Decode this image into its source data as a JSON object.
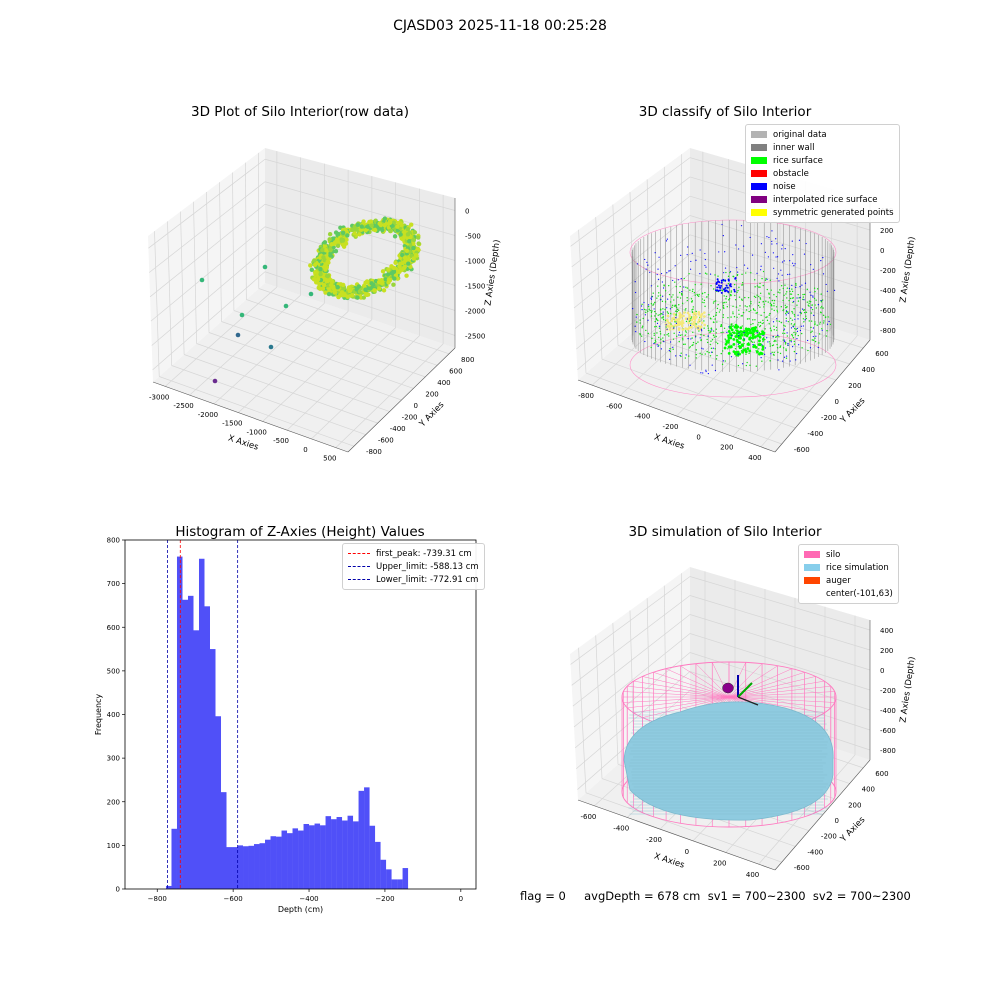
{
  "header": {
    "title": "CJASD03 2025-11-18 00:25:28"
  },
  "panels": {
    "raw": {
      "title": "3D Plot of Silo Interior(row data)",
      "xlabel": "X Axies",
      "ylabel": "Y Axies",
      "zlabel": "Z Axies (Depth)",
      "xticks": [
        "-3000",
        "-2500",
        "-2000",
        "-1500",
        "-1000",
        "-500",
        "0",
        "500"
      ],
      "yticks": [
        "-800",
        "-600",
        "-400",
        "-200",
        "0",
        "200",
        "400",
        "600",
        "800"
      ],
      "zticks": [
        "0",
        "-500",
        "-1000",
        "-1500",
        "-2000",
        "-2500"
      ]
    },
    "classify": {
      "title": "3D classify of Silo Interior",
      "xlabel": "X Axies",
      "ylabel": "Y Axies",
      "zlabel": "Z Axies (Depth)",
      "xticks": [
        "-800",
        "-600",
        "-400",
        "-200",
        "0",
        "200",
        "400"
      ],
      "yticks": [
        "-600",
        "-400",
        "-200",
        "0",
        "200",
        "400",
        "600"
      ],
      "zticks": [
        "400",
        "200",
        "0",
        "-200",
        "-400",
        "-600",
        "-800"
      ],
      "legend": [
        {
          "label": "original data",
          "color": "#b3b3b3"
        },
        {
          "label": "inner wall",
          "color": "#808080"
        },
        {
          "label": "rice surface",
          "color": "#00ff00"
        },
        {
          "label": "obstacle",
          "color": "#ff0000"
        },
        {
          "label": "noise",
          "color": "#0000ff"
        },
        {
          "label": "interpolated rice surface",
          "color": "#800080"
        },
        {
          "label": "symmetric generated points",
          "color": "#ffff00"
        }
      ]
    },
    "simulation": {
      "title": "3D simulation of Silo Interior",
      "xlabel": "X Axies",
      "ylabel": "Y Axies",
      "zlabel": "Z Axies (Depth)",
      "xticks": [
        "-600",
        "-400",
        "-200",
        "0",
        "200",
        "400"
      ],
      "yticks": [
        "-600",
        "-400",
        "-200",
        "0",
        "200",
        "400",
        "600"
      ],
      "zticks": [
        "400",
        "200",
        "0",
        "-200",
        "-400",
        "-600",
        "-800"
      ],
      "legend": [
        {
          "label": "silo",
          "color": "#ff69b4"
        },
        {
          "label": "rice simulation",
          "color": "#87ceeb"
        },
        {
          "label": "auger",
          "color": "#ff4500"
        },
        {
          "label": "center(-101,63)",
          "color": ""
        }
      ]
    }
  },
  "footer": {
    "stats": "flag = 0     avgDepth = 678 cm  sv1 = 700~2300  sv2 = 700~2300"
  },
  "chart_data": {
    "type": "bar",
    "title": "Histogram of Z-Axies (Height) Values",
    "xlabel": "Depth (cm)",
    "ylabel": "Frequency",
    "xlim": [
      -885,
      40
    ],
    "ylim": [
      0,
      800
    ],
    "xticks": [
      -800,
      -600,
      -400,
      -200,
      0
    ],
    "yticks": [
      0,
      100,
      200,
      300,
      400,
      500,
      600,
      700,
      800
    ],
    "bin_width": 14.5,
    "bin_start": -777,
    "color": "#5050f8",
    "values": [
      7,
      138,
      762,
      663,
      672,
      593,
      757,
      648,
      550,
      396,
      222,
      96,
      96,
      100,
      98,
      99,
      103,
      105,
      113,
      121,
      120,
      134,
      128,
      139,
      134,
      149,
      146,
      150,
      146,
      167,
      160,
      165,
      157,
      168,
      155,
      225,
      233,
      145,
      108,
      67,
      45,
      22,
      22,
      48
    ],
    "vlines": [
      {
        "label": "first_peak: -739.31 cm",
        "x": -739.31,
        "color": "#ff0000"
      },
      {
        "label": "Upper_limit: -588.13 cm",
        "x": -588.13,
        "color": "#0000aa"
      },
      {
        "label": "Lower_limit: -772.91 cm",
        "x": -772.91,
        "color": "#0000aa"
      }
    ]
  }
}
